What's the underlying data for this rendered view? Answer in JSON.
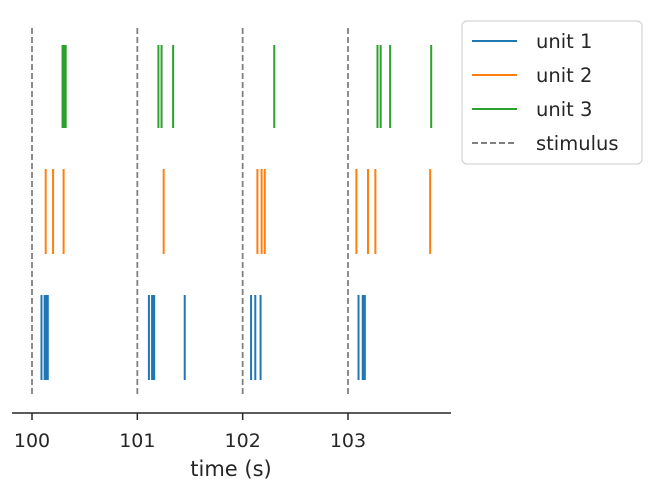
{
  "chart_data": {
    "type": "raster",
    "xlabel": "time (s)",
    "ylabel": "",
    "xlim": [
      99.8,
      103.97
    ],
    "xticks": [
      100,
      101,
      102,
      103
    ],
    "xtick_labels": [
      "100",
      "101",
      "102",
      "103"
    ],
    "stimulus": {
      "name": "stimulus",
      "color": "#808080",
      "style": "dashed",
      "times": [
        100,
        101,
        102,
        103
      ]
    },
    "series": [
      {
        "name": "unit 1",
        "color": "#1f77b4",
        "spikes": [
          100.09,
          100.12,
          100.13,
          100.14,
          100.15,
          101.11,
          101.14,
          101.15,
          101.16,
          101.45,
          102.08,
          102.12,
          102.17,
          103.1,
          103.14,
          103.15,
          103.16
        ]
      },
      {
        "name": "unit 2",
        "color": "#ff7f0e",
        "spikes": [
          100.13,
          100.2,
          100.3,
          101.25,
          102.14,
          102.18,
          102.21,
          103.08,
          103.19,
          103.26,
          103.78
        ]
      },
      {
        "name": "unit 3",
        "color": "#2ca02c",
        "spikes": [
          100.29,
          100.3,
          100.31,
          100.32,
          101.2,
          101.23,
          101.34,
          102.3,
          103.28,
          103.31,
          103.4,
          103.79
        ]
      }
    ],
    "legend": {
      "placement": "outside-top-right",
      "entries": [
        "unit 1",
        "unit 2",
        "unit 3",
        "stimulus"
      ]
    },
    "grid": false
  }
}
